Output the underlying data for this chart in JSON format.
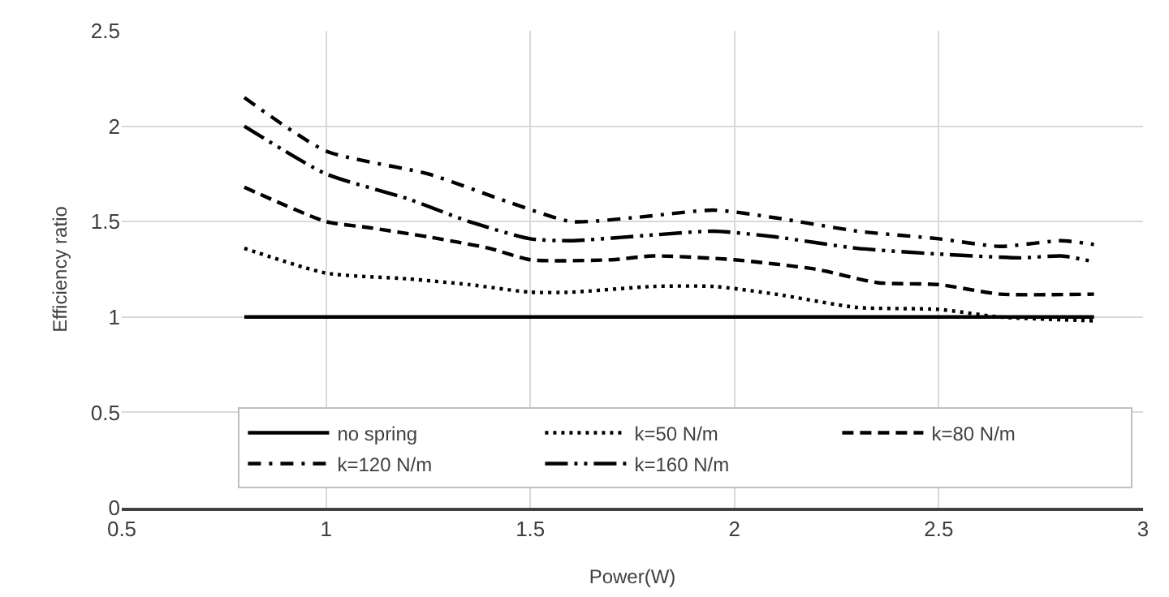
{
  "chart_data": {
    "type": "line",
    "xlabel": "Power(W)",
    "ylabel": "Efficiency ratio",
    "xlim": [
      0.5,
      3
    ],
    "xticks": [
      0.5,
      1,
      1.5,
      2,
      2.5,
      3
    ],
    "ylim": [
      0,
      2.5
    ],
    "yticks": [
      0,
      0.5,
      1,
      1.5,
      2,
      2.5
    ],
    "grid": true,
    "legend": "bottom right",
    "marker": "none",
    "series": [
      {
        "name": "no spring",
        "color": "#000000",
        "line_style": "solid",
        "x": [
          0.8,
          2.88
        ],
        "values": [
          1,
          1
        ]
      },
      {
        "name": "k=50 N/m",
        "color": "#000000",
        "line_style": "dotted",
        "x": [
          0.8,
          1.0,
          1.2,
          1.35,
          1.5,
          1.6,
          1.8,
          1.95,
          2.1,
          2.3,
          2.5,
          2.65,
          2.88
        ],
        "values": [
          1.36,
          1.23,
          1.2,
          1.17,
          1.13,
          1.13,
          1.16,
          1.16,
          1.12,
          1.05,
          1.04,
          1.0,
          0.98
        ]
      },
      {
        "name": "k=80 N/m",
        "color": "#000000",
        "line_style": "dashed",
        "x": [
          0.8,
          1.0,
          1.1,
          1.25,
          1.4,
          1.5,
          1.7,
          1.8,
          2.0,
          2.2,
          2.35,
          2.5,
          2.65,
          2.88
        ],
        "values": [
          1.68,
          1.5,
          1.47,
          1.42,
          1.36,
          1.3,
          1.3,
          1.32,
          1.3,
          1.25,
          1.18,
          1.17,
          1.12,
          1.12
        ]
      },
      {
        "name": "k=120 N/m",
        "color": "#000000",
        "line_style": "dashdot",
        "x": [
          0.8,
          1.0,
          1.25,
          1.45,
          1.6,
          1.75,
          1.95,
          2.1,
          2.3,
          2.5,
          2.65,
          2.8,
          2.88
        ],
        "values": [
          2.15,
          1.87,
          1.75,
          1.6,
          1.5,
          1.52,
          1.56,
          1.52,
          1.45,
          1.41,
          1.37,
          1.4,
          1.38
        ]
      },
      {
        "name": "k=160 N/m",
        "color": "#000000",
        "line_style": "longdashdotdot",
        "x": [
          0.8,
          1.0,
          1.2,
          1.35,
          1.5,
          1.6,
          1.8,
          1.95,
          2.1,
          2.3,
          2.5,
          2.7,
          2.8,
          2.88
        ],
        "values": [
          2.0,
          1.75,
          1.62,
          1.5,
          1.41,
          1.4,
          1.43,
          1.45,
          1.42,
          1.36,
          1.33,
          1.31,
          1.32,
          1.29
        ]
      }
    ]
  }
}
